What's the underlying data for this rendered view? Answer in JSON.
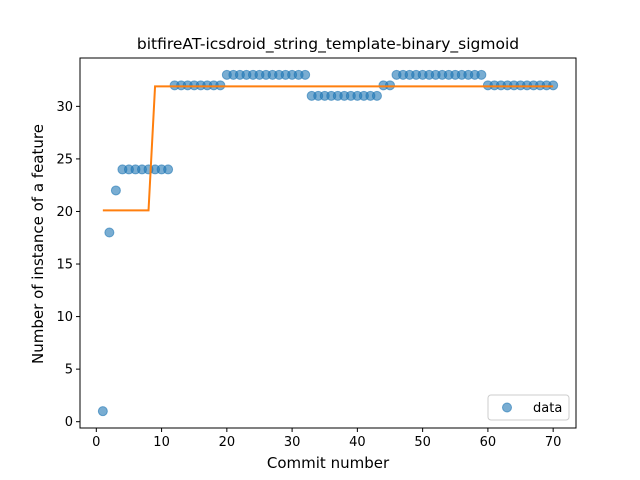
{
  "chart_data": {
    "type": "scatter",
    "title": "bitfireAT-icsdroid_string_template-binary_sigmoid",
    "xlabel": "Commit number",
    "ylabel": "Number of instance of a feature",
    "xlim": [
      -2.5,
      73.5
    ],
    "ylim": [
      -0.6,
      34.6
    ],
    "xticks": [
      0,
      10,
      20,
      30,
      40,
      50,
      60,
      70
    ],
    "yticks": [
      0,
      5,
      10,
      15,
      20,
      25,
      30
    ],
    "grid": false,
    "legend_position": "bottom-right",
    "series": [
      {
        "name": "data",
        "kind": "scatter",
        "color": "#1f77b4",
        "x": [
          1,
          2,
          3,
          4,
          5,
          6,
          7,
          8,
          9,
          10,
          11,
          12,
          13,
          14,
          15,
          16,
          17,
          18,
          19,
          20,
          21,
          22,
          23,
          24,
          25,
          26,
          27,
          28,
          29,
          30,
          31,
          32,
          33,
          34,
          35,
          36,
          37,
          38,
          39,
          40,
          41,
          42,
          43,
          44,
          45,
          46,
          47,
          48,
          49,
          50,
          51,
          52,
          53,
          54,
          55,
          56,
          57,
          58,
          59,
          60,
          61,
          62,
          63,
          64,
          65,
          66,
          67,
          68,
          69,
          70
        ],
        "y": [
          1,
          18,
          22,
          24,
          24,
          24,
          24,
          24,
          24,
          24,
          24,
          32,
          32,
          32,
          32,
          32,
          32,
          32,
          32,
          33,
          33,
          33,
          33,
          33,
          33,
          33,
          33,
          33,
          33,
          33,
          33,
          33,
          31,
          31,
          31,
          31,
          31,
          31,
          31,
          31,
          31,
          31,
          31,
          32,
          32,
          33,
          33,
          33,
          33,
          33,
          33,
          33,
          33,
          33,
          33,
          33,
          33,
          33,
          33,
          32,
          32,
          32,
          32,
          32,
          32,
          32,
          32,
          32,
          32,
          32
        ]
      },
      {
        "kind": "line",
        "color": "#ff7f0e",
        "x": [
          1,
          8,
          9,
          70
        ],
        "y": [
          20.1,
          20.1,
          31.9,
          31.9
        ]
      }
    ]
  }
}
